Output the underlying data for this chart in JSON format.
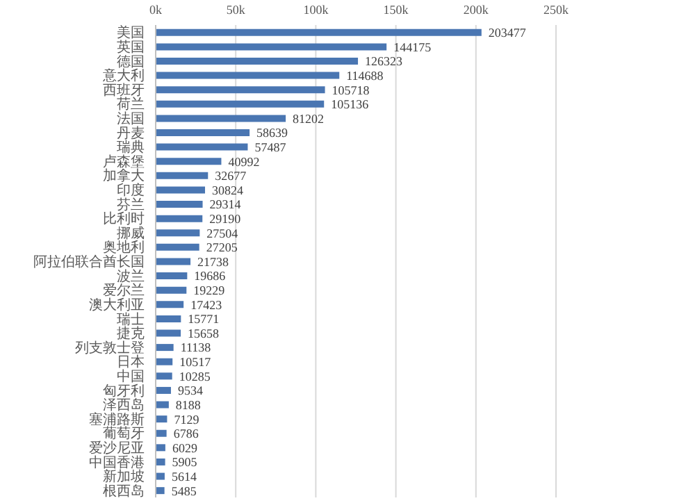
{
  "chart_data": {
    "type": "bar",
    "orientation": "horizontal",
    "categories": [
      "美国",
      "英国",
      "德国",
      "意大利",
      "西班牙",
      "荷兰",
      "法国",
      "丹麦",
      "瑞典",
      "卢森堡",
      "加拿大",
      "印度",
      "芬兰",
      "比利时",
      "挪威",
      "奥地利",
      "阿拉伯联合酋长国",
      "波兰",
      "爱尔兰",
      "澳大利亚",
      "瑞士",
      "捷克",
      "列支敦士登",
      "日本",
      "中国",
      "匈牙利",
      "泽西岛",
      "塞浦路斯",
      "葡萄牙",
      "爱沙尼亚",
      "中国香港",
      "新加坡",
      "根西岛"
    ],
    "values": [
      203477,
      144175,
      126323,
      114688,
      105718,
      105136,
      81202,
      58639,
      57487,
      40992,
      32677,
      30824,
      29314,
      29190,
      27504,
      27205,
      21738,
      19686,
      19229,
      17423,
      15771,
      15658,
      11138,
      10517,
      10285,
      9534,
      8188,
      7129,
      6786,
      6029,
      5905,
      5614,
      5485
    ],
    "color": "#4a76b2",
    "xlim": [
      0,
      250000
    ],
    "xticks": [
      {
        "value": 0,
        "label": "0k"
      },
      {
        "value": 50000,
        "label": "50k"
      },
      {
        "value": 100000,
        "label": "100k"
      },
      {
        "value": 150000,
        "label": "150k"
      },
      {
        "value": 200000,
        "label": "200k"
      },
      {
        "value": 250000,
        "label": "250k"
      }
    ],
    "grid": "x",
    "data_labels": true
  }
}
